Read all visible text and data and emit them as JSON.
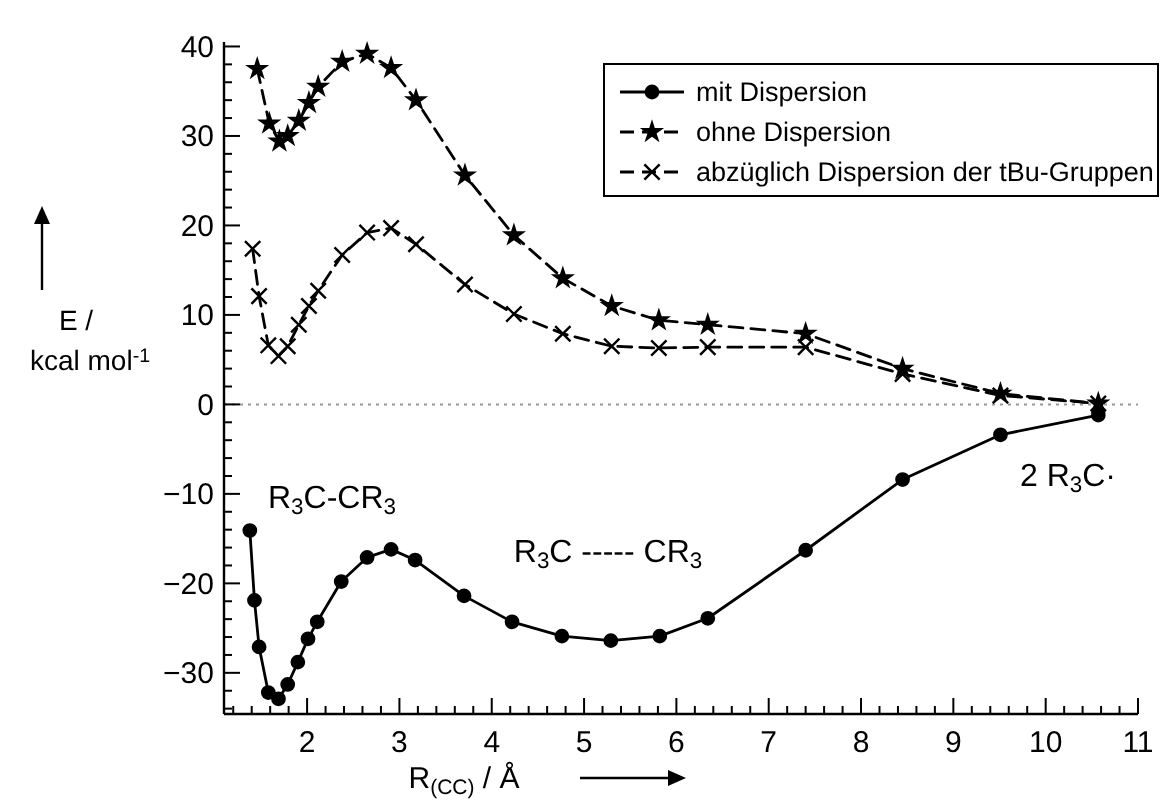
{
  "chart_data": {
    "type": "line",
    "xlabel": "R$_{(CC)}$ / Å",
    "ylabel": "E / kcal mol$^{-1}$",
    "xlim": [
      1.1,
      11
    ],
    "ylim": [
      -34.6,
      40.5
    ],
    "xticks": [
      2,
      3,
      4,
      5,
      6,
      7,
      8,
      9,
      10,
      11,
      {
        "value": 1.2,
        "label": null
      },
      {
        "value": 1.4,
        "label": null
      },
      {
        "value": 1.6,
        "label": null
      },
      {
        "value": 1.8,
        "label": null
      },
      {
        "value": 2.2,
        "label": null
      },
      {
        "value": 2.4,
        "label": null
      },
      {
        "value": 2.6,
        "label": null
      },
      {
        "value": 2.8,
        "label": null
      },
      {
        "value": 3.2,
        "label": null
      },
      {
        "value": 3.4,
        "label": null
      },
      {
        "value": 3.6,
        "label": null
      },
      {
        "value": 3.8,
        "label": null
      },
      {
        "value": 4.2,
        "label": null
      },
      {
        "value": 4.4,
        "label": null
      },
      {
        "value": 4.6,
        "label": null
      },
      {
        "value": 4.8,
        "label": null
      },
      {
        "value": 5.2,
        "label": null
      },
      {
        "value": 5.4,
        "label": null
      },
      {
        "value": 5.6,
        "label": null
      },
      {
        "value": 5.8,
        "label": null
      },
      {
        "value": 6.2,
        "label": null
      },
      {
        "value": 6.4,
        "label": null
      },
      {
        "value": 6.6,
        "label": null
      },
      {
        "value": 6.8,
        "label": null
      },
      {
        "value": 7.2,
        "label": null
      },
      {
        "value": 7.4,
        "label": null
      },
      {
        "value": 7.6,
        "label": null
      },
      {
        "value": 7.8,
        "label": null
      },
      {
        "value": 8.2,
        "label": null
      },
      {
        "value": 8.4,
        "label": null
      },
      {
        "value": 8.6,
        "label": null
      },
      {
        "value": 8.8,
        "label": null
      },
      {
        "value": 9.2,
        "label": null
      },
      {
        "value": 9.4,
        "label": null
      },
      {
        "value": 9.6,
        "label": null
      },
      {
        "value": 9.8,
        "label": null
      },
      {
        "value": 10.2,
        "label": null
      },
      {
        "value": 10.4,
        "label": null
      },
      {
        "value": 10.6,
        "label": null
      },
      {
        "value": 10.8,
        "label": null
      }
    ],
    "yticks": [
      -30,
      -20,
      -10,
      0,
      10,
      20,
      30,
      40,
      {
        "value": -34,
        "label": null
      },
      {
        "value": -32,
        "label": null
      },
      {
        "value": -28,
        "label": null
      },
      {
        "value": -26,
        "label": null
      },
      {
        "value": -24,
        "label": null
      },
      {
        "value": -22,
        "label": null
      },
      {
        "value": -18,
        "label": null
      },
      {
        "value": -16,
        "label": null
      },
      {
        "value": -14,
        "label": null
      },
      {
        "value": -12,
        "label": null
      },
      {
        "value": -8,
        "label": null
      },
      {
        "value": -6,
        "label": null
      },
      {
        "value": -4,
        "label": null
      },
      {
        "value": -2,
        "label": null
      },
      {
        "value": 2,
        "label": null
      },
      {
        "value": 4,
        "label": null
      },
      {
        "value": 6,
        "label": null
      },
      {
        "value": 8,
        "label": null
      },
      {
        "value": 12,
        "label": null
      },
      {
        "value": 14,
        "label": null
      },
      {
        "value": 16,
        "label": null
      },
      {
        "value": 18,
        "label": null
      },
      {
        "value": 22,
        "label": null
      },
      {
        "value": 24,
        "label": null
      },
      {
        "value": 26,
        "label": null
      },
      {
        "value": 28,
        "label": null
      },
      {
        "value": 32,
        "label": null
      },
      {
        "value": 34,
        "label": null
      },
      {
        "value": 36,
        "label": null
      },
      {
        "value": 38,
        "label": null
      }
    ],
    "grid": false,
    "legend": "top right",
    "ref_lines": [
      {
        "axis": "y",
        "value": 0,
        "label": null,
        "color": "#999999",
        "line_style": "dotted"
      }
    ],
    "annotations": [
      "R$_{3}$C-CR$_{3}$",
      "R$_{3}$C ----- CR$_{3}$",
      "2 R$_{3}$C·"
    ],
    "series": [
      {
        "name": "mit Dispersion",
        "color": "#000000",
        "marker": "circle",
        "line_style": "solid",
        "x": [
          1.38,
          1.43,
          1.48,
          1.58,
          1.69,
          1.79,
          1.9,
          2.01,
          2.11,
          2.37,
          2.65,
          2.91,
          3.17,
          3.7,
          4.22,
          4.76,
          5.29,
          5.82,
          6.34,
          7.4,
          8.45,
          9.51,
          10.57
        ],
        "values": [
          -14.1,
          -21.9,
          -27.1,
          -32.2,
          -32.9,
          -31.3,
          -28.8,
          -26.2,
          -24.3,
          -19.8,
          -17.1,
          -16.2,
          -17.4,
          -21.4,
          -24.3,
          -25.9,
          -26.4,
          -25.9,
          -23.9,
          -16.3,
          -8.4,
          -3.4,
          -1.2
        ]
      },
      {
        "name": "ohne Dispersion",
        "color": "#000000",
        "marker": "star",
        "line_style": "dashed",
        "x": [
          1.46,
          1.59,
          1.7,
          1.79,
          1.91,
          2.02,
          2.12,
          2.38,
          2.65,
          2.91,
          3.18,
          3.71,
          4.24,
          4.77,
          5.3,
          5.81,
          6.34,
          7.4,
          8.45,
          9.51,
          10.57
        ],
        "values": [
          37.5,
          31.4,
          29.4,
          30.0,
          31.7,
          33.7,
          35.5,
          38.3,
          39.2,
          37.6,
          34.0,
          25.6,
          18.9,
          14.1,
          11.0,
          9.4,
          8.9,
          7.9,
          4.0,
          1.2,
          0.1
        ]
      },
      {
        "name": "abzüglich Dispersion der tBu-Gruppen",
        "color": "#000000",
        "marker": "cross",
        "line_style": "dashed",
        "x": [
          1.41,
          1.48,
          1.58,
          1.69,
          1.79,
          1.91,
          2.02,
          2.12,
          2.38,
          2.65,
          2.91,
          3.18,
          3.71,
          4.24,
          4.77,
          5.3,
          5.81,
          6.34,
          7.4,
          8.45,
          9.51,
          10.57
        ],
        "values": [
          17.4,
          12.1,
          6.6,
          5.4,
          6.5,
          8.9,
          11.0,
          12.7,
          16.7,
          19.2,
          19.7,
          17.9,
          13.4,
          10.1,
          7.9,
          6.5,
          6.3,
          6.4,
          6.4,
          3.4,
          1.0,
          0.1
        ]
      }
    ]
  }
}
